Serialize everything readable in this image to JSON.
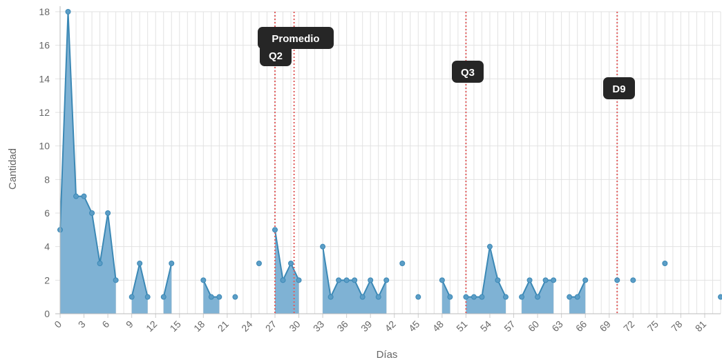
{
  "chart_data": {
    "type": "line",
    "fill": "area",
    "xlabel": "Días",
    "ylabel": "Cantidad",
    "ylim": [
      0,
      18
    ],
    "xlim": [
      0,
      83
    ],
    "y_ticks": [
      0,
      2,
      4,
      6,
      8,
      10,
      12,
      14,
      16,
      18
    ],
    "x_ticks": [
      0,
      3,
      6,
      9,
      12,
      15,
      18,
      21,
      24,
      27,
      30,
      33,
      36,
      39,
      42,
      45,
      48,
      51,
      54,
      57,
      60,
      63,
      66,
      69,
      72,
      75,
      78,
      81
    ],
    "grid": true,
    "series": [
      {
        "color": "#3b88b5",
        "fill_color": "#7fb2d4",
        "x": [
          0,
          1,
          2,
          3,
          4,
          5,
          6,
          7,
          9,
          10,
          11,
          13,
          14,
          18,
          19,
          20,
          22,
          25,
          27,
          28,
          29,
          30,
          33,
          34,
          35,
          36,
          37,
          38,
          39,
          40,
          41,
          43,
          45,
          48,
          49,
          51,
          52,
          53,
          54,
          55,
          56,
          58,
          59,
          60,
          61,
          62,
          64,
          65,
          66,
          70,
          72,
          76,
          83
        ],
        "y": [
          5,
          18,
          7,
          7,
          6,
          3,
          6,
          2,
          1,
          3,
          1,
          1,
          3,
          2,
          1,
          1,
          1,
          3,
          5,
          2,
          3,
          2,
          4,
          1,
          2,
          2,
          2,
          1,
          2,
          1,
          2,
          3,
          1,
          2,
          1,
          1,
          1,
          1,
          4,
          2,
          1,
          1,
          2,
          1,
          2,
          2,
          1,
          1,
          2,
          2,
          2,
          3,
          1
        ]
      }
    ],
    "reference_lines": [
      {
        "label": "Promedio",
        "x": 29.4
      },
      {
        "label": "Q2",
        "x": 27
      },
      {
        "label": "Q3",
        "x": 51
      },
      {
        "label": "D9",
        "x": 70
      }
    ]
  }
}
